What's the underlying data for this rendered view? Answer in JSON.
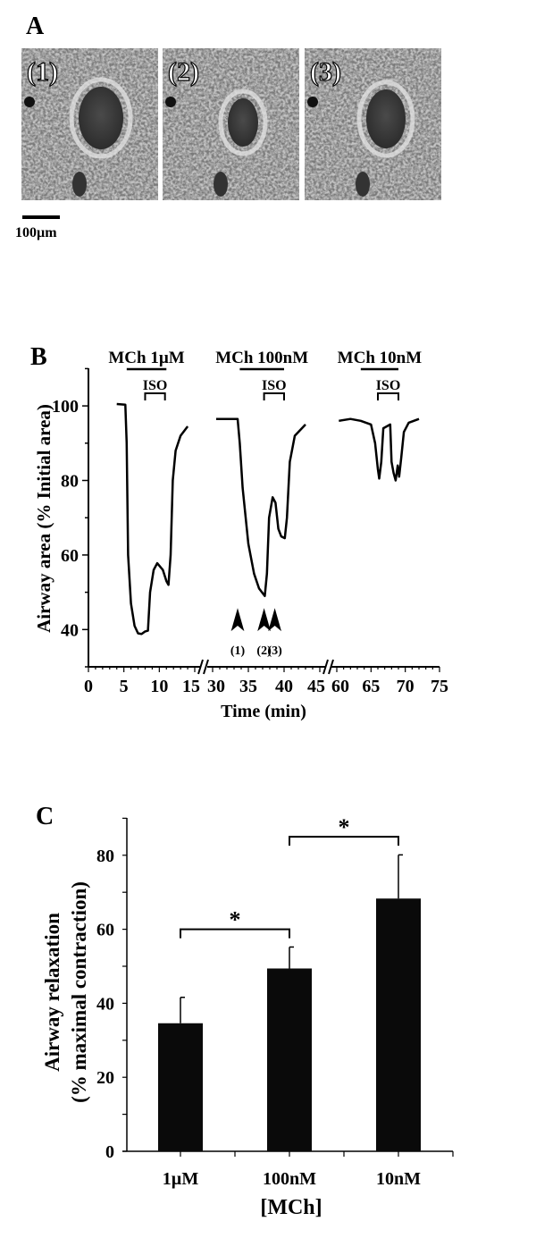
{
  "panel_a": {
    "label": "A",
    "images": [
      {
        "label": "(1)",
        "airway": "contracted-baseline"
      },
      {
        "label": "(2)",
        "airway": "maximal-contraction"
      },
      {
        "label": "(3)",
        "airway": "relaxed-by-ISO"
      }
    ],
    "scale_bar_label": "100µm"
  },
  "chart_data": [
    {
      "panel": "B",
      "type": "line",
      "xlabel": "Time (min)",
      "ylabel": "Airway area (% Initial area)",
      "ylim": [
        30,
        110
      ],
      "yticks": [
        40,
        60,
        80,
        100
      ],
      "x_segments": [
        [
          0,
          15
        ],
        [
          30,
          45
        ],
        [
          60,
          75
        ]
      ],
      "xticks": [
        0,
        5,
        10,
        15,
        30,
        35,
        40,
        45,
        60,
        65,
        70,
        75
      ],
      "axis_break": true,
      "grid": false,
      "color": "#000000",
      "series": [
        {
          "x": [
            4,
            5.2,
            5.4,
            5.6,
            6,
            6.5,
            7,
            7.5,
            8,
            8.4,
            8.7,
            9.2,
            9.7,
            10.5,
            11,
            11.3,
            11.6,
            11.9,
            12.3,
            13,
            14
          ],
          "y": [
            100.5,
            100.3,
            90,
            60,
            47,
            41,
            39,
            38.8,
            39.5,
            39.7,
            50,
            56,
            57.8,
            56,
            53,
            52,
            60,
            80,
            88,
            92,
            94.5
          ]
        },
        {
          "x": [
            30.5,
            33.5,
            33.8,
            34.2,
            35,
            35.8,
            36.5,
            37.3,
            37.6,
            37.9,
            38.4,
            38.8,
            39.2,
            39.6,
            40.1,
            40.4,
            40.8,
            41.5,
            43
          ],
          "y": [
            96.5,
            96.5,
            90,
            78,
            63,
            55,
            51,
            49,
            55,
            70,
            75.5,
            74,
            67,
            65,
            64.5,
            70,
            85,
            92,
            95
          ]
        },
        {
          "x": [
            60.3,
            62,
            63.5,
            65,
            65.6,
            66,
            66.2,
            66.5,
            66.8,
            67.8,
            68,
            68.3,
            68.6,
            68.9,
            69.1,
            69.4,
            69.8,
            70.5,
            72
          ],
          "y": [
            96,
            96.5,
            96,
            95,
            90,
            83,
            80.5,
            85,
            94,
            95,
            85,
            82,
            80,
            84,
            81,
            86,
            93,
            95.5,
            96.5
          ]
        }
      ],
      "treatments": [
        {
          "label": "MCh 1µM",
          "start": 5.4,
          "end": 11,
          "iso_label": "ISO",
          "iso_start": 8,
          "iso_end": 10.8
        },
        {
          "label": "MCh 100nM",
          "start": 33.8,
          "end": 40,
          "iso_label": "ISO",
          "iso_start": 37.2,
          "iso_end": 40
        },
        {
          "label": "MCh 10nM",
          "start": 63.5,
          "end": 69,
          "iso_label": "ISO",
          "iso_start": 66,
          "iso_end": 69
        }
      ],
      "arrows": [
        {
          "label": "(1)",
          "x": 33.5
        },
        {
          "label": "(2)",
          "x": 37.2
        },
        {
          "label": "(3)",
          "x": 38.7
        }
      ]
    },
    {
      "panel": "C",
      "type": "bar",
      "categories": [
        "1µM",
        "100nM",
        "10nM"
      ],
      "values": [
        34.6,
        49.4,
        68.3
      ],
      "errors": [
        7.0,
        5.8,
        11.8
      ],
      "xlabel": "[MCh]",
      "ylabel": "Airway relaxation",
      "ylabel2": "(% maximal contraction)",
      "ylim": [
        0,
        90
      ],
      "yticks": [
        0,
        20,
        40,
        60,
        80
      ],
      "grid": false,
      "color": "#000000",
      "significance": [
        {
          "from": 0,
          "to": 1,
          "y": 60,
          "label": "*"
        },
        {
          "from": 1,
          "to": 2,
          "y": 85,
          "label": "*"
        }
      ]
    }
  ]
}
